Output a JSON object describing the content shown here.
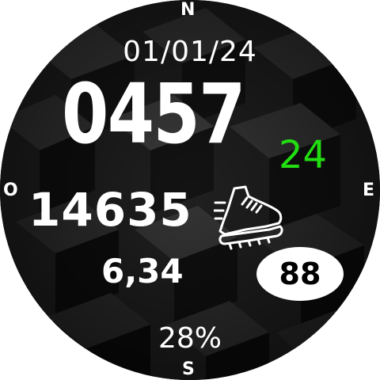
{
  "compass": {
    "north": "N",
    "south": "S",
    "east": "E",
    "west": "O"
  },
  "date": "01/01/24",
  "time": "0457",
  "seconds": "24",
  "steps": "14635",
  "distance": "6,34",
  "heart_rate": "88",
  "battery": "28%",
  "icons": {
    "steps": "running-shoe-icon"
  },
  "colors": {
    "seconds": "#22dd11",
    "text": "#ffffff",
    "pill_bg": "#ffffff",
    "pill_text": "#000000"
  }
}
